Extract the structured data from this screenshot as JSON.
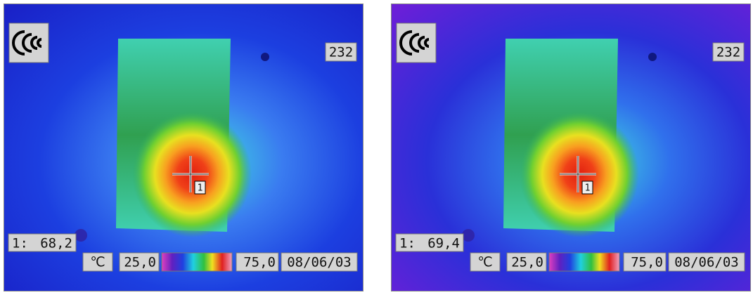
{
  "panels": [
    {
      "counter": "232",
      "spot": {
        "index": "1:",
        "value": "68,2"
      },
      "cursor_label": "1",
      "unit": "℃",
      "scale": {
        "min": "25,0",
        "max": "75,0"
      },
      "date": "08/06/03"
    },
    {
      "counter": "232",
      "spot": {
        "index": "1:",
        "value": "69,4"
      },
      "cursor_label": "1",
      "unit": "℃",
      "scale": {
        "min": "25,0",
        "max": "75,0"
      },
      "date": "08/06/03"
    }
  ]
}
